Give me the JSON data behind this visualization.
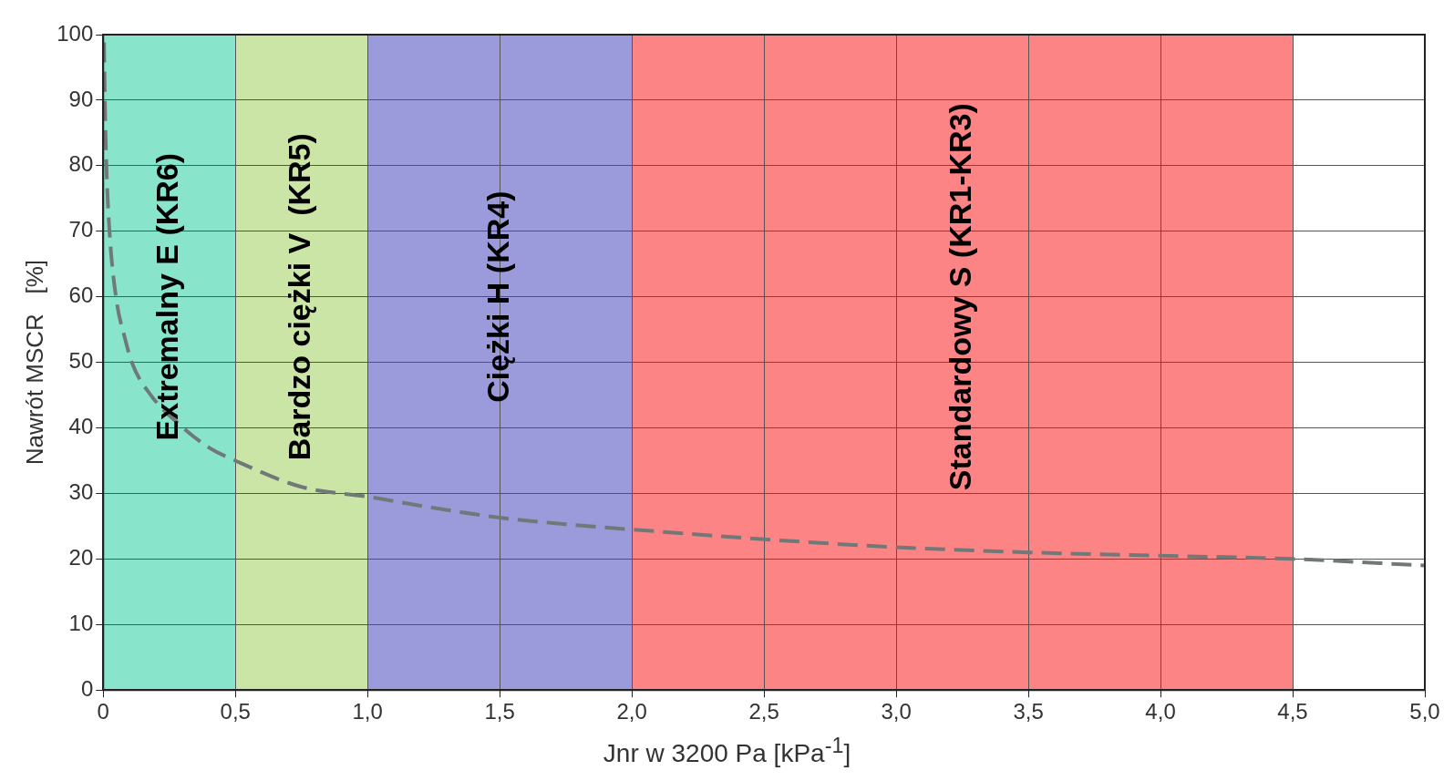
{
  "chart_data": {
    "type": "line",
    "xlabel": "Jnr w 3200 Pa [kPa$^{-1}$]",
    "ylabel": "Nawrót MSCR   [%]",
    "series": [
      {
        "color": "#707878",
        "x": [
          0.003,
          0.006,
          0.012,
          0.024,
          0.05,
          0.08,
          0.11,
          0.18,
          0.28,
          0.4,
          0.5,
          0.75,
          1.0,
          1.25,
          1.5,
          1.75,
          2.0,
          2.5,
          3.0,
          3.5,
          4.0,
          4.5,
          5.0
        ],
        "values": [
          98.8,
          90.5,
          80,
          69.8,
          59.5,
          54,
          49.8,
          45,
          40.8,
          37,
          35,
          31,
          29.5,
          27.8,
          26.3,
          25.3,
          24.5,
          23,
          21.8,
          21,
          20.5,
          20,
          19
        ]
      }
    ],
    "xlim": [
      0,
      5
    ],
    "xticks": [
      0,
      {
        "value": 0.5,
        "label": "0,5"
      },
      {
        "value": 1,
        "label": "1,0"
      },
      {
        "value": 1.5,
        "label": "1,5"
      },
      {
        "value": 2,
        "label": "2,0"
      },
      {
        "value": 2.5,
        "label": "2,5"
      },
      {
        "value": 3,
        "label": "3,0"
      },
      {
        "value": 3.5,
        "label": "3,5"
      },
      {
        "value": 4,
        "label": "4,0"
      },
      {
        "value": 4.5,
        "label": "4,5"
      },
      {
        "value": 5,
        "label": "5,0"
      }
    ],
    "ylim": [
      0,
      100
    ],
    "yticks": [
      0,
      10,
      20,
      30,
      40,
      50,
      60,
      70,
      80,
      90,
      100
    ],
    "bands": [
      {
        "axis": "x",
        "from": 0,
        "to": 0.5,
        "label": "Extremalny E (KR6)",
        "color": "#88e5cc"
      },
      {
        "axis": "x",
        "from": 0.5,
        "to": 1,
        "label": "Bardzo ciężki V  (KR5)",
        "color": "#cae5a6"
      },
      {
        "axis": "x",
        "from": 1,
        "to": 2,
        "label": "Ciężki H (KR4)",
        "color": "#9b9bdc"
      },
      {
        "axis": "x",
        "from": 2,
        "to": 4.5,
        "label": "Standardowy S (KR1-KR3)",
        "color": "#fd8484"
      }
    ],
    "grid": true,
    "legend": false,
    "marker": "none",
    "line_style": "dashed"
  }
}
